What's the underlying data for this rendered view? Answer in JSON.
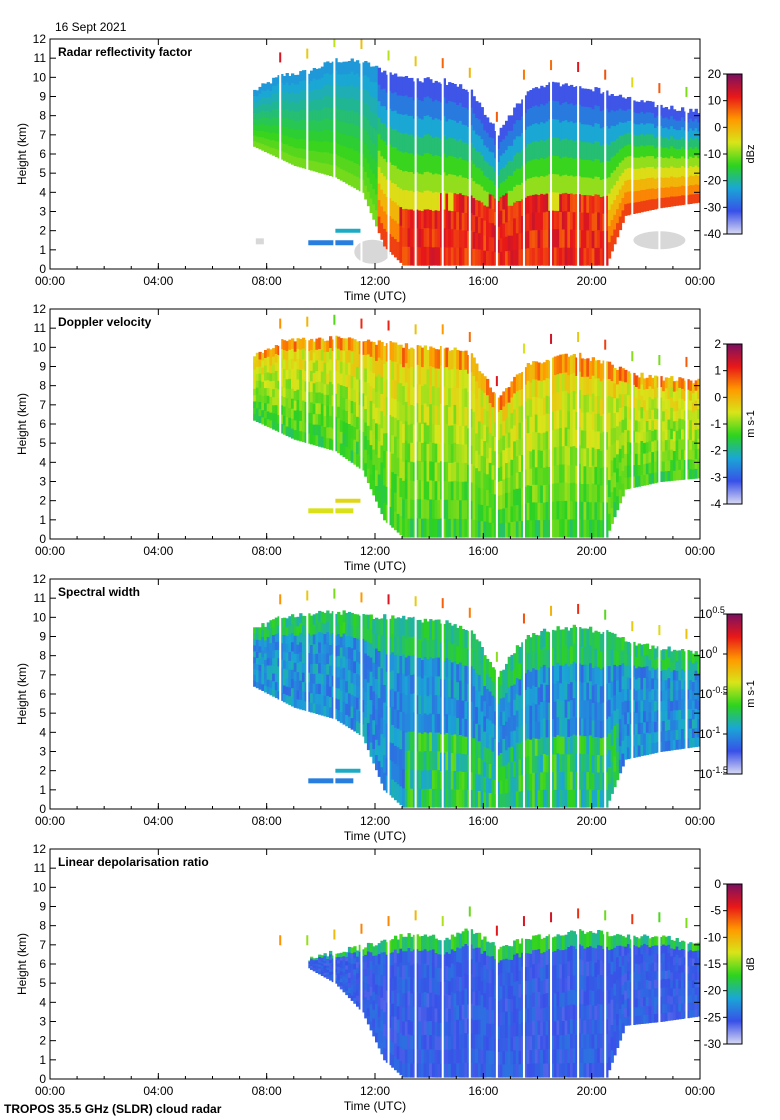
{
  "header": {
    "date": "16 Sept 2021"
  },
  "footer": {
    "title": "TROPOS 35.5 GHz (SLDR) cloud radar"
  },
  "colors": {
    "cloud_gray": "#d8d8d8",
    "colormap": [
      "#d9d9f2",
      "#3850e8",
      "#1aa6d6",
      "#2ed31e",
      "#d8e51a",
      "#ff9a00",
      "#e81818",
      "#7a1060"
    ]
  },
  "chart_data": [
    {
      "type": "heatmap",
      "title": "Radar reflectivity factor",
      "xlabel": "Time (UTC)",
      "ylabel": "Height (km)",
      "xlim": [
        0,
        24
      ],
      "ylim": [
        0,
        12
      ],
      "x_ticks": [
        0,
        4,
        8,
        12,
        16,
        20,
        24
      ],
      "x_tick_labels": [
        "00:00",
        "04:00",
        "08:00",
        "12:00",
        "16:00",
        "20:00",
        "00:00"
      ],
      "y_ticks": [
        0,
        1,
        2,
        3,
        4,
        5,
        6,
        7,
        8,
        9,
        10,
        11,
        12
      ],
      "y_tick_labels": [
        "0",
        "1",
        "2",
        "3",
        "4",
        "5",
        "6",
        "7",
        "8",
        "9",
        "10",
        "11",
        "12"
      ],
      "colorbar": {
        "units": "dBz",
        "range": [
          -40,
          20
        ],
        "ticks": [
          20,
          10,
          0,
          -10,
          -20,
          -30,
          -40
        ],
        "tick_labels": [
          "20",
          "10",
          "0",
          "-10",
          "-20",
          "-30",
          "-40"
        ]
      },
      "cloud_top_km": [
        [
          7.5,
          9.3
        ],
        [
          8.5,
          10.1
        ],
        [
          9.5,
          10.3
        ],
        [
          10.5,
          10.9
        ],
        [
          11.5,
          10.8
        ],
        [
          12.5,
          10.2
        ],
        [
          13.5,
          9.9
        ],
        [
          14.5,
          9.8
        ],
        [
          15.5,
          9.3
        ],
        [
          16.5,
          7.0
        ],
        [
          17.5,
          9.2
        ],
        [
          18.5,
          9.7
        ],
        [
          19.5,
          9.6
        ],
        [
          20.5,
          9.2
        ],
        [
          21.5,
          8.8
        ],
        [
          22.5,
          8.5
        ],
        [
          23.5,
          8.3
        ],
        [
          24,
          8.2
        ]
      ],
      "cloud_base_km": [
        [
          7.5,
          6.4
        ],
        [
          9.0,
          5.4
        ],
        [
          10.5,
          4.8
        ],
        [
          11.5,
          4.0
        ],
        [
          12.3,
          1.2
        ],
        [
          13.0,
          0.2
        ],
        [
          20.5,
          0.2
        ],
        [
          21.2,
          2.8
        ],
        [
          22.5,
          3.2
        ],
        [
          24,
          3.5
        ]
      ],
      "core": {
        "start_h": 12.8,
        "end_h": 20.6,
        "height_km": 3.5,
        "peak_dbz": 18
      }
    },
    {
      "type": "heatmap",
      "title": "Doppler velocity",
      "xlabel": "Time (UTC)",
      "ylabel": "Height (km)",
      "xlim": [
        0,
        24
      ],
      "ylim": [
        0,
        12
      ],
      "x_ticks": [
        0,
        4,
        8,
        12,
        16,
        20,
        24
      ],
      "x_tick_labels": [
        "00:00",
        "04:00",
        "08:00",
        "12:00",
        "16:00",
        "20:00",
        "00:00"
      ],
      "y_ticks": [
        0,
        1,
        2,
        3,
        4,
        5,
        6,
        7,
        8,
        9,
        10,
        11,
        12
      ],
      "y_tick_labels": [
        "0",
        "1",
        "2",
        "3",
        "4",
        "5",
        "6",
        "7",
        "8",
        "9",
        "10",
        "11",
        "12"
      ],
      "colorbar": {
        "units": "m s-1",
        "range": [
          -4,
          2
        ],
        "ticks": [
          2,
          1,
          0,
          -1,
          -2,
          -3,
          -4
        ],
        "tick_labels": [
          "2",
          "1",
          "0",
          "-1",
          "-2",
          "-3",
          "-4"
        ]
      },
      "cloud_top_km": [
        [
          7.5,
          9.5
        ],
        [
          8.5,
          10.3
        ],
        [
          9.5,
          10.4
        ],
        [
          10.5,
          10.5
        ],
        [
          11.5,
          10.3
        ],
        [
          12.5,
          10.2
        ],
        [
          13.5,
          10.0
        ],
        [
          14.5,
          10.0
        ],
        [
          15.5,
          9.6
        ],
        [
          16.5,
          7.3
        ],
        [
          17.5,
          9.0
        ],
        [
          18.5,
          9.5
        ],
        [
          19.5,
          9.6
        ],
        [
          20.5,
          9.2
        ],
        [
          21.5,
          8.6
        ],
        [
          22.5,
          8.4
        ],
        [
          23.5,
          8.3
        ],
        [
          24,
          8.2
        ]
      ],
      "cloud_base_km": [
        [
          7.5,
          6.2
        ],
        [
          9.0,
          5.2
        ],
        [
          10.5,
          4.6
        ],
        [
          11.5,
          3.6
        ],
        [
          12.3,
          1.0
        ],
        [
          13.0,
          0.1
        ],
        [
          20.5,
          0.1
        ],
        [
          21.2,
          2.6
        ],
        [
          22.5,
          3.0
        ],
        [
          24,
          3.2
        ]
      ],
      "typical_value": -1.5
    },
    {
      "type": "heatmap",
      "title": "Spectral width",
      "xlabel": "Time (UTC)",
      "ylabel": "Height (km)",
      "xlim": [
        0,
        24
      ],
      "ylim": [
        0,
        12
      ],
      "x_ticks": [
        0,
        4,
        8,
        12,
        16,
        20,
        24
      ],
      "x_tick_labels": [
        "00:00",
        "04:00",
        "08:00",
        "12:00",
        "16:00",
        "20:00",
        "00:00"
      ],
      "y_ticks": [
        0,
        1,
        2,
        3,
        4,
        5,
        6,
        7,
        8,
        9,
        10,
        11,
        12
      ],
      "y_tick_labels": [
        "0",
        "1",
        "2",
        "3",
        "4",
        "5",
        "6",
        "7",
        "8",
        "9",
        "10",
        "11",
        "12"
      ],
      "colorbar": {
        "units": "m s-1",
        "range": [
          -1.5,
          0.5
        ],
        "tick_labels": [
          "10",
          "10",
          "10",
          "10",
          "10"
        ],
        "tick_exponents": [
          "0.5",
          "0",
          "-0.5",
          "-1",
          "-1.5"
        ]
      },
      "cloud_top_km": [
        [
          7.5,
          9.4
        ],
        [
          8.5,
          10.0
        ],
        [
          9.5,
          10.2
        ],
        [
          10.5,
          10.3
        ],
        [
          11.5,
          10.1
        ],
        [
          12.5,
          10.0
        ],
        [
          13.5,
          9.9
        ],
        [
          14.5,
          9.8
        ],
        [
          15.5,
          9.3
        ],
        [
          16.5,
          7.0
        ],
        [
          17.5,
          9.0
        ],
        [
          18.5,
          9.4
        ],
        [
          19.5,
          9.5
        ],
        [
          20.5,
          9.2
        ],
        [
          21.5,
          8.6
        ],
        [
          22.5,
          8.4
        ],
        [
          23.5,
          8.2
        ],
        [
          24,
          8.1
        ]
      ],
      "cloud_base_km": [
        [
          7.5,
          6.4
        ],
        [
          9.0,
          5.3
        ],
        [
          10.5,
          4.7
        ],
        [
          11.5,
          3.8
        ],
        [
          12.3,
          1.0
        ],
        [
          13.0,
          0.1
        ],
        [
          20.5,
          0.1
        ],
        [
          21.2,
          2.6
        ],
        [
          22.5,
          3.0
        ],
        [
          24,
          3.3
        ]
      ],
      "typical_value_log10": -0.9
    },
    {
      "type": "heatmap",
      "title": "Linear depolarisation ratio",
      "xlabel": "Time (UTC)",
      "ylabel": "Height (km)",
      "xlim": [
        0,
        24
      ],
      "ylim": [
        0,
        12
      ],
      "x_ticks": [
        0,
        4,
        8,
        12,
        16,
        20,
        24
      ],
      "x_tick_labels": [
        "00:00",
        "04:00",
        "08:00",
        "12:00",
        "16:00",
        "20:00",
        "00:00"
      ],
      "y_ticks": [
        0,
        1,
        2,
        3,
        4,
        5,
        6,
        7,
        8,
        9,
        10,
        11,
        12
      ],
      "y_tick_labels": [
        "0",
        "1",
        "2",
        "3",
        "4",
        "5",
        "6",
        "7",
        "8",
        "9",
        "10",
        "11",
        "12"
      ],
      "colorbar": {
        "units": "dB",
        "range": [
          -30,
          0
        ],
        "ticks": [
          0,
          -5,
          -10,
          -15,
          -20,
          -25,
          -30
        ],
        "tick_labels": [
          "0",
          "-5",
          "-10",
          "-15",
          "-20",
          "-25",
          "-30"
        ]
      },
      "cloud_top_km": [
        [
          9.5,
          6.3
        ],
        [
          10.5,
          6.6
        ],
        [
          11.5,
          6.9
        ],
        [
          12.5,
          7.3
        ],
        [
          13.5,
          7.6
        ],
        [
          14.5,
          7.3
        ],
        [
          15.5,
          7.8
        ],
        [
          16.5,
          6.8
        ],
        [
          17.5,
          7.3
        ],
        [
          18.5,
          7.5
        ],
        [
          19.5,
          7.7
        ],
        [
          20.5,
          7.6
        ],
        [
          21.5,
          7.4
        ],
        [
          22.5,
          7.5
        ],
        [
          23.5,
          7.2
        ],
        [
          24,
          7.1
        ]
      ],
      "cloud_base_km": [
        [
          9.5,
          5.8
        ],
        [
          10.5,
          5.0
        ],
        [
          11.5,
          3.5
        ],
        [
          12.3,
          1.0
        ],
        [
          13.0,
          0.1
        ],
        [
          20.5,
          0.1
        ],
        [
          21.2,
          2.8
        ],
        [
          22.5,
          3.0
        ],
        [
          24,
          3.3
        ]
      ],
      "typical_value": -25
    }
  ]
}
